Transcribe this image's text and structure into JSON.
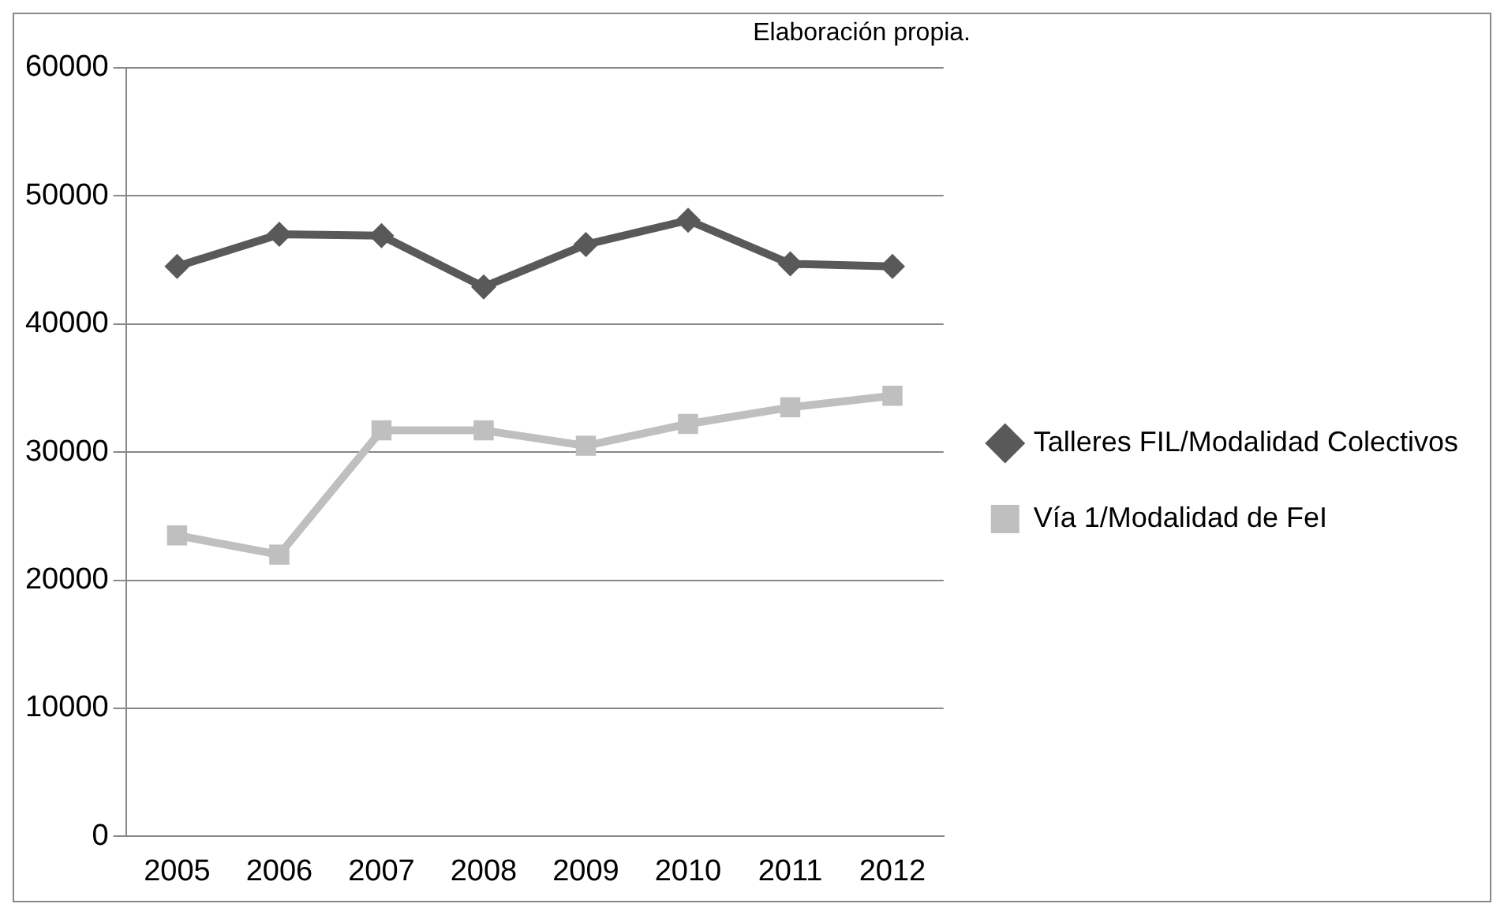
{
  "chart_data": {
    "type": "line",
    "categories": [
      "2005",
      "2006",
      "2007",
      "2008",
      "2009",
      "2010",
      "2011",
      "2012"
    ],
    "series": [
      {
        "name": "Talleres FIL/Modalidad Colectivos",
        "color": "#595959",
        "marker": "diamond",
        "values": [
          44500,
          47000,
          46900,
          42900,
          46200,
          48100,
          44700,
          44500
        ]
      },
      {
        "name": "Vía 1/Modalidad de FeI",
        "color": "#bfbfbf",
        "marker": "square",
        "values": [
          23500,
          22000,
          31700,
          31700,
          30500,
          32200,
          33500,
          34400
        ]
      }
    ],
    "ylim": [
      0,
      60000
    ],
    "yticks": [
      0,
      10000,
      20000,
      30000,
      40000,
      50000,
      60000
    ],
    "grid": "y",
    "legend": "right",
    "line_style": "solid",
    "annotations": [
      "Elaboración propia."
    ]
  }
}
